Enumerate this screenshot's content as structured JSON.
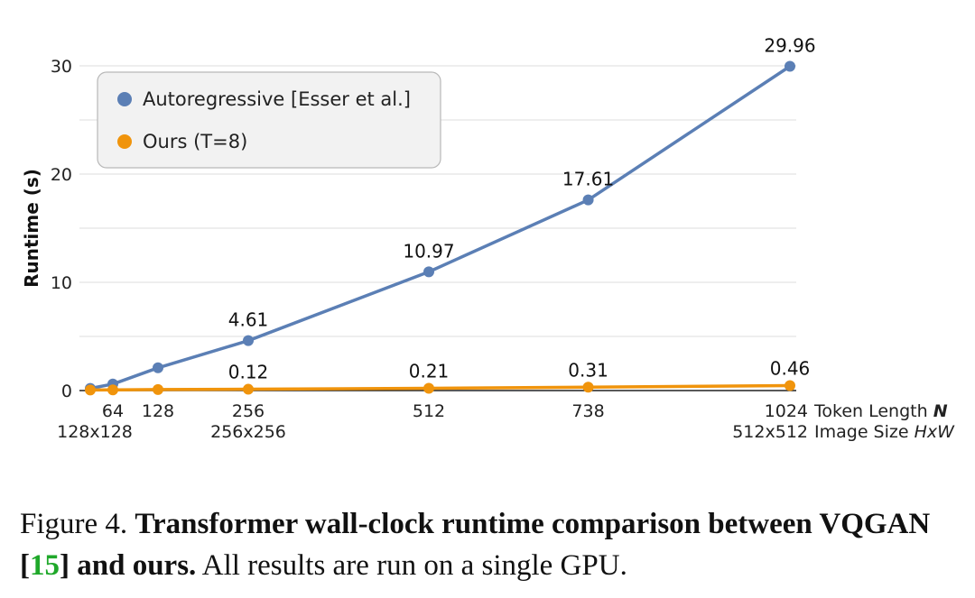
{
  "chart_data": {
    "type": "line",
    "x": [
      32,
      64,
      128,
      256,
      512,
      738,
      1024
    ],
    "series": [
      {
        "name": "Autoregressive [Esser et al.]",
        "color": "#5b7fb5",
        "values": [
          0.2,
          0.6,
          2.1,
          4.61,
          10.97,
          17.61,
          29.96
        ]
      },
      {
        "name": "Ours (T=8)",
        "color": "#f0940c",
        "values": [
          0.05,
          0.06,
          0.09,
          0.12,
          0.21,
          0.31,
          0.46
        ]
      }
    ],
    "data_labels": [
      {
        "series": 0,
        "point": 3,
        "text": "4.61"
      },
      {
        "series": 0,
        "point": 4,
        "text": "10.97"
      },
      {
        "series": 0,
        "point": 5,
        "text": "17.61"
      },
      {
        "series": 0,
        "point": 6,
        "text": "29.96"
      },
      {
        "series": 1,
        "point": 3,
        "text": "0.12"
      },
      {
        "series": 1,
        "point": 4,
        "text": "0.21"
      },
      {
        "series": 1,
        "point": 5,
        "text": "0.31"
      },
      {
        "series": 1,
        "point": 6,
        "text": "0.46"
      }
    ],
    "ylabel": "Runtime (s)",
    "ylim": [
      0,
      30
    ],
    "yticks": [
      0,
      10,
      20,
      30
    ],
    "grid_step": 5,
    "xticks": [
      {
        "x": 64,
        "text": "64"
      },
      {
        "x": 128,
        "text": "128"
      },
      {
        "x": 256,
        "text": "256"
      },
      {
        "x": 512,
        "text": "512"
      },
      {
        "x": 738,
        "text": "738"
      },
      {
        "x": 1024,
        "text": "1024"
      }
    ],
    "xticks2": [
      {
        "x": 32,
        "text": "128x128"
      },
      {
        "x": 256,
        "text": "256x256"
      },
      {
        "x": 1024,
        "text": "512x512"
      }
    ],
    "xlabel_prefix": "Token Length",
    "xlabel_var": "N",
    "xlabel2_prefix": "Image Size",
    "xlabel2_var": "HxW",
    "legend_position": "top-left",
    "grid": true
  },
  "caption": {
    "figure": "Figure 4.",
    "title_a": "Transformer wall-clock runtime comparison between VQGAN [",
    "cite": "15",
    "title_b": "] and ours.",
    "body": "All results are run on a single GPU."
  }
}
